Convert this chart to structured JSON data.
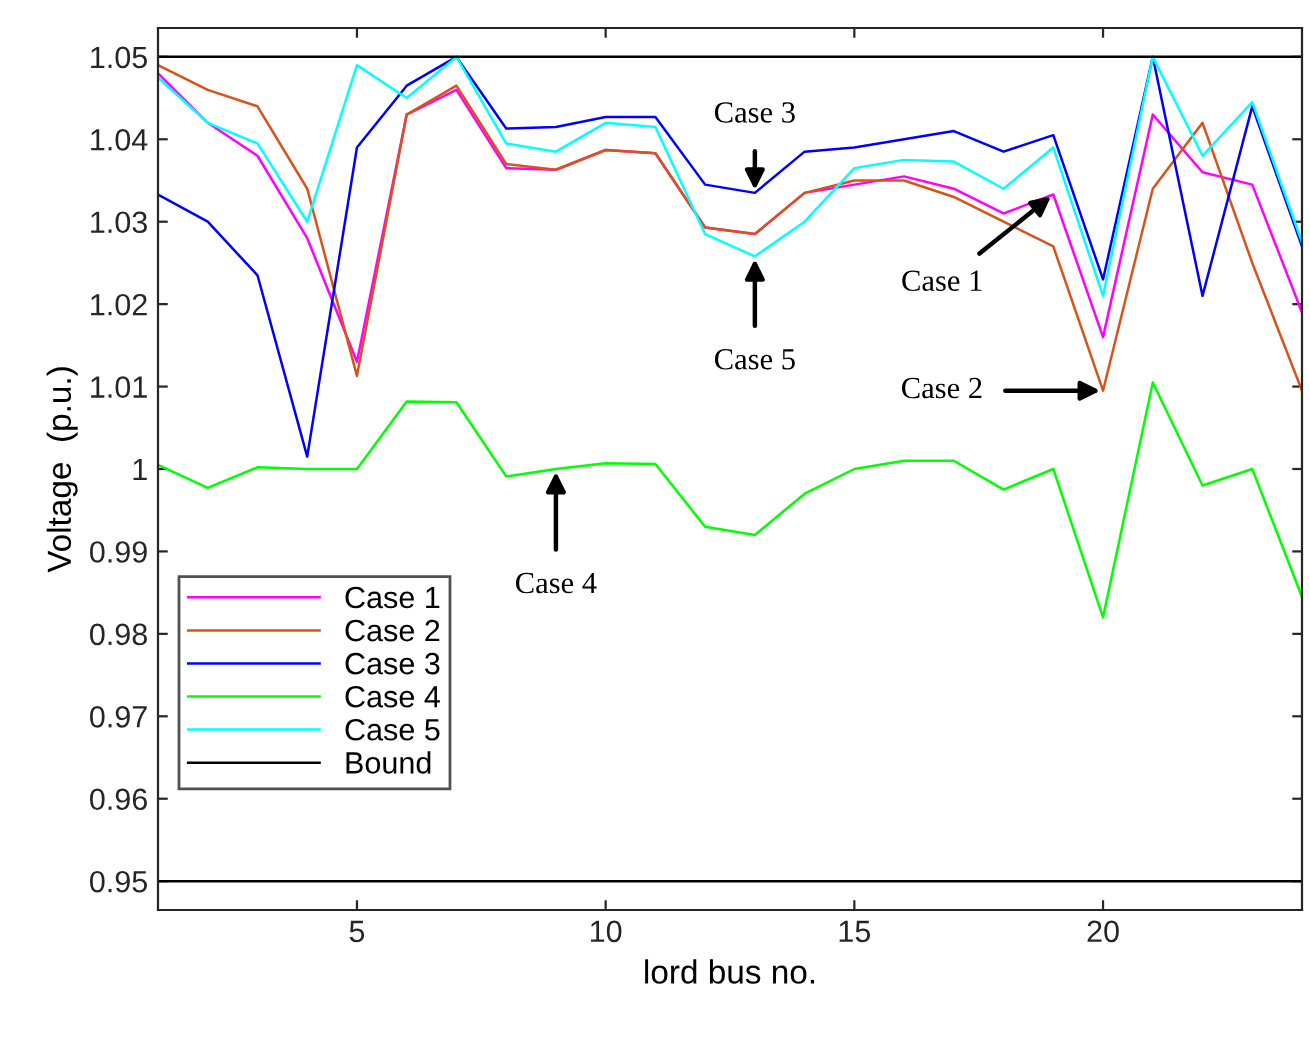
{
  "chart_data": {
    "type": "line",
    "xlabel": "lord bus no.",
    "ylabel": "Voltage  (p.u.)",
    "x": [
      1,
      2,
      3,
      4,
      5,
      6,
      7,
      8,
      9,
      10,
      11,
      12,
      13,
      14,
      15,
      16,
      17,
      18,
      19,
      20,
      21,
      22,
      23,
      24
    ],
    "xlim": [
      1,
      24
    ],
    "xticks": [
      5,
      10,
      15,
      20
    ],
    "ylim": [
      0.9465,
      1.0535
    ],
    "yticks": [
      0.95,
      0.96,
      0.97,
      0.98,
      0.99,
      1,
      1.01,
      1.02,
      1.03,
      1.04,
      1.05
    ],
    "series": [
      {
        "name": "Case 1",
        "color": "#ff00ff",
        "values": [
          1.048,
          1.042,
          1.038,
          1.028,
          1.013,
          1.043,
          1.046,
          1.0365,
          1.0363,
          1.0387,
          1.0383,
          1.0293,
          1.0285,
          1.0335,
          1.0345,
          1.0355,
          1.034,
          1.031,
          1.0333,
          1.016,
          1.043,
          1.036,
          1.0345,
          1.019
        ]
      },
      {
        "name": "Case 2",
        "color": "#d95319",
        "values": [
          1.049,
          1.046,
          1.044,
          1.034,
          1.0113,
          1.043,
          1.0465,
          1.037,
          1.0363,
          1.0387,
          1.0383,
          1.0293,
          1.0285,
          1.0335,
          1.035,
          1.035,
          1.033,
          1.03,
          1.027,
          1.0095,
          1.034,
          1.042,
          1.025,
          1.0095
        ]
      },
      {
        "name": "Case 3",
        "color": "#0000ff",
        "values": [
          1.0333,
          1.03,
          1.0235,
          1.0015,
          1.039,
          1.0465,
          1.05,
          1.0413,
          1.0415,
          1.0427,
          1.0427,
          1.0345,
          1.0335,
          1.0385,
          1.039,
          1.04,
          1.041,
          1.0385,
          1.0405,
          1.023,
          1.05,
          1.021,
          1.044,
          1.027
        ]
      },
      {
        "name": "Case 4",
        "color": "#00ff00",
        "values": [
          1.0005,
          0.9977,
          1.0002,
          1.0,
          1.0,
          1.0082,
          1.0081,
          0.9991,
          1.0,
          1.0007,
          1.0006,
          0.993,
          0.992,
          0.997,
          1.0,
          1.001,
          1.001,
          0.9975,
          1.0,
          0.982,
          1.0105,
          0.998,
          1.0,
          0.9845
        ]
      },
      {
        "name": "Case 5",
        "color": "#00ffff",
        "values": [
          1.0475,
          1.042,
          1.0395,
          1.03,
          1.049,
          1.045,
          1.05,
          1.0395,
          1.0385,
          1.042,
          1.0415,
          1.0285,
          1.0258,
          1.03,
          1.0365,
          1.0375,
          1.0373,
          1.034,
          1.039,
          1.021,
          1.05,
          1.038,
          1.0445,
          1.0275
        ]
      }
    ],
    "ref_lines": [
      {
        "axis": "y",
        "value": 1.05,
        "label": "Bound",
        "color": "#000000"
      },
      {
        "axis": "y",
        "value": 0.95,
        "color": "#000000"
      }
    ],
    "annotations": [
      {
        "text": "Case 3",
        "x": 13,
        "y": 1.0335
      },
      {
        "text": "Case 5",
        "x": 13,
        "y": 1.0258
      },
      {
        "text": "Case 1",
        "x": 19,
        "y": 1.0333
      },
      {
        "text": "Case 2",
        "x": 20,
        "y": 1.0095
      },
      {
        "text": "Case 4",
        "x": 9,
        "y": 1.0
      }
    ],
    "legend": "bottom left",
    "grid": false,
    "marker": "none",
    "line_style": "solid"
  }
}
